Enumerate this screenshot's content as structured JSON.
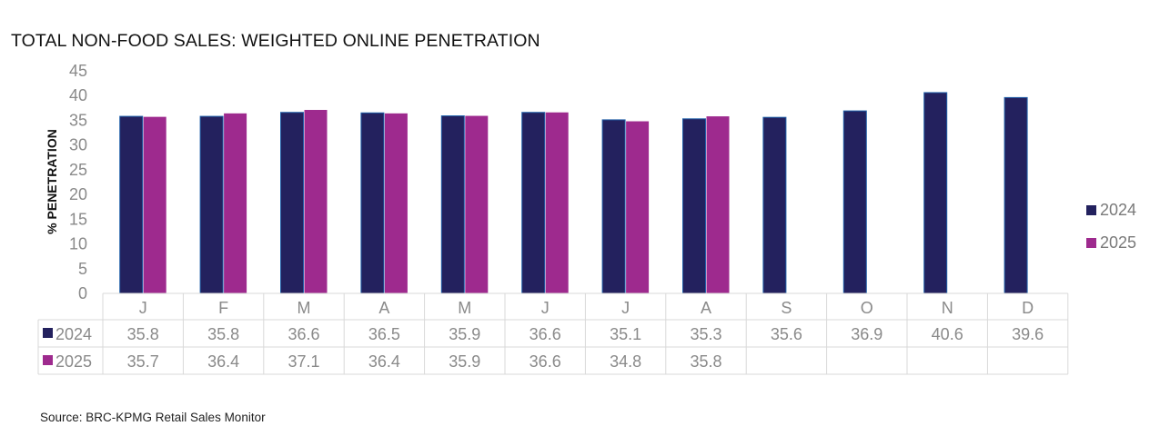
{
  "chart_data": {
    "type": "bar",
    "title": "TOTAL NON-FOOD SALES: WEIGHTED ONLINE PENETRATION",
    "ylabel": "% PENETRATION",
    "xlabel": "",
    "ylim": [
      0,
      45
    ],
    "yticks": [
      0,
      5,
      10,
      15,
      20,
      25,
      30,
      35,
      40,
      45
    ],
    "categories": [
      "J",
      "F",
      "M",
      "A",
      "M",
      "J",
      "J",
      "A",
      "S",
      "O",
      "N",
      "D"
    ],
    "series": [
      {
        "name": "2024",
        "color": "#23215e",
        "values": [
          35.8,
          35.8,
          36.6,
          36.5,
          35.9,
          36.6,
          35.1,
          35.3,
          35.6,
          36.9,
          40.6,
          39.6
        ]
      },
      {
        "name": "2025",
        "color": "#9e2a8e",
        "values": [
          35.7,
          36.4,
          37.1,
          36.4,
          35.9,
          36.6,
          34.8,
          35.8,
          null,
          null,
          null,
          null
        ]
      }
    ],
    "legend_position": "right",
    "grid": false,
    "data_table": true
  },
  "source": "Source: BRC-KPMG Retail Sales Monitor"
}
